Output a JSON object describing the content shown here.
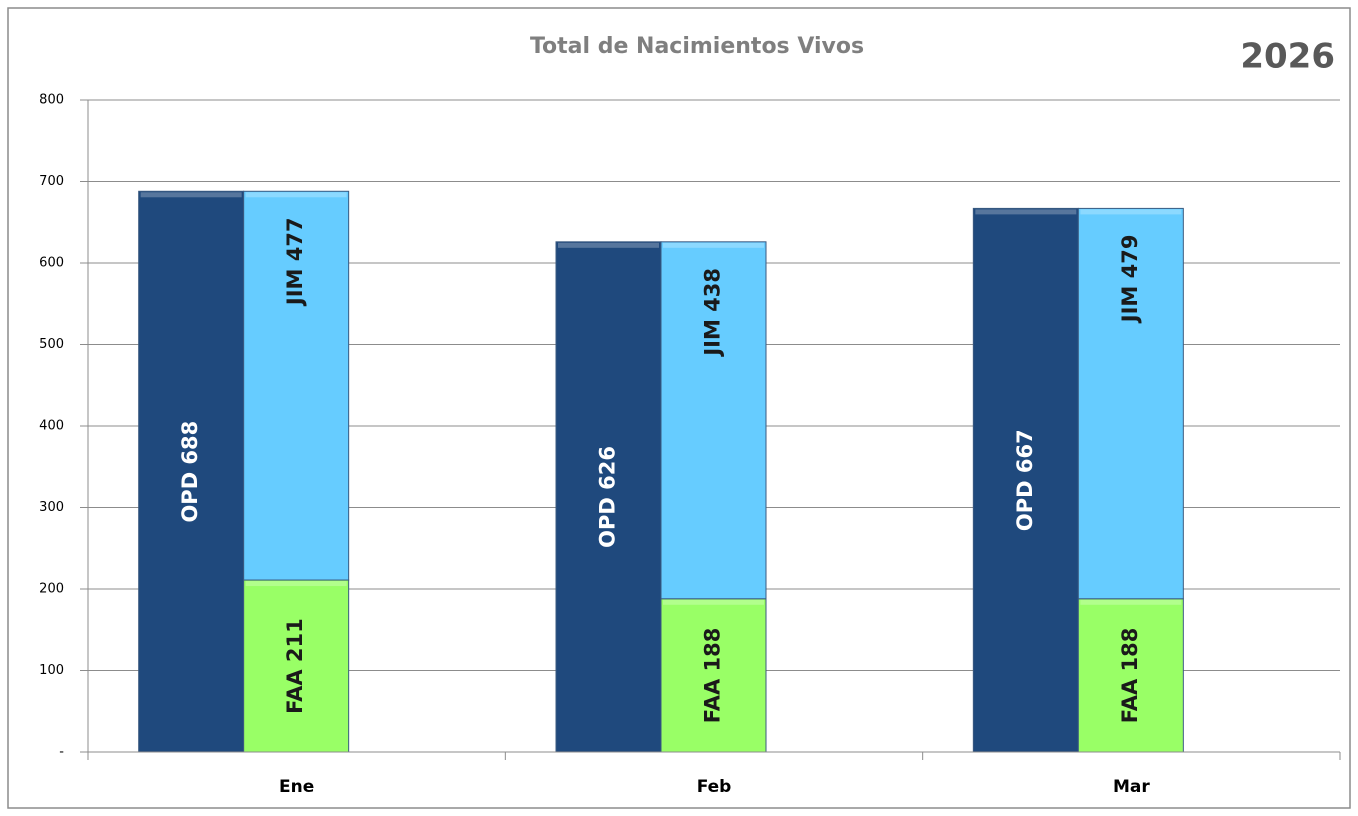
{
  "chart_data": {
    "type": "bar",
    "title": "Total de Nacimientos Vivos",
    "annotation": "2026",
    "categories": [
      "Ene",
      "Feb",
      "Mar"
    ],
    "series": [
      {
        "color": "#1f497d",
        "stack": 0,
        "values": [
          688,
          626,
          667
        ],
        "value_labels": [
          "OPD  688",
          "OPD  626",
          "OPD  667"
        ]
      },
      {
        "color": "#99ff66",
        "stack": 1,
        "values": [
          211,
          188,
          188
        ],
        "value_labels": [
          "FAA  211",
          "FAA  188",
          "FAA  188"
        ]
      },
      {
        "color": "#66ccff",
        "stack": 1,
        "values": [
          477,
          438,
          479
        ],
        "value_labels": [
          "JIM  477",
          "JIM  438",
          "JIM  479"
        ]
      }
    ],
    "ylim": [
      0,
      800
    ],
    "yticks": [
      {
        "value": 0,
        "label": "-"
      },
      100,
      200,
      300,
      400,
      500,
      600,
      700,
      800
    ],
    "grid": true
  }
}
